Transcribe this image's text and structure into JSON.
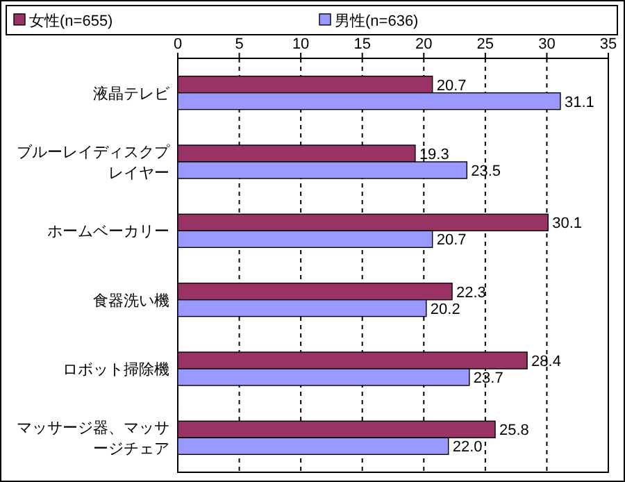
{
  "chart_data": {
    "type": "bar",
    "orientation": "horizontal",
    "categories": [
      "液晶テレビ",
      "ブルーレイディスクプレイヤー",
      "ホームベーカリー",
      "食器洗い機",
      "ロボット掃除機",
      "マッサージ器、マッサージチェア"
    ],
    "series": [
      {
        "name": "女性(n=655)",
        "color": "#993366",
        "values": [
          20.7,
          19.3,
          30.1,
          22.3,
          28.4,
          25.8
        ],
        "value_labels": [
          "20.7",
          "19.3",
          "30.1",
          "22.3",
          "28.4",
          "25.8"
        ]
      },
      {
        "name": "男性(n=636)",
        "color": "#9999ff",
        "values": [
          31.1,
          23.5,
          20.7,
          20.2,
          23.7,
          22.0
        ],
        "value_labels": [
          "31.1",
          "23.5",
          "20.7",
          "20.2",
          "23.7",
          "22.0"
        ]
      }
    ],
    "xlim": [
      0,
      35
    ],
    "xticks": [
      0,
      5,
      10,
      15,
      20,
      25,
      30,
      35
    ],
    "grid": "x",
    "legend": "top"
  }
}
